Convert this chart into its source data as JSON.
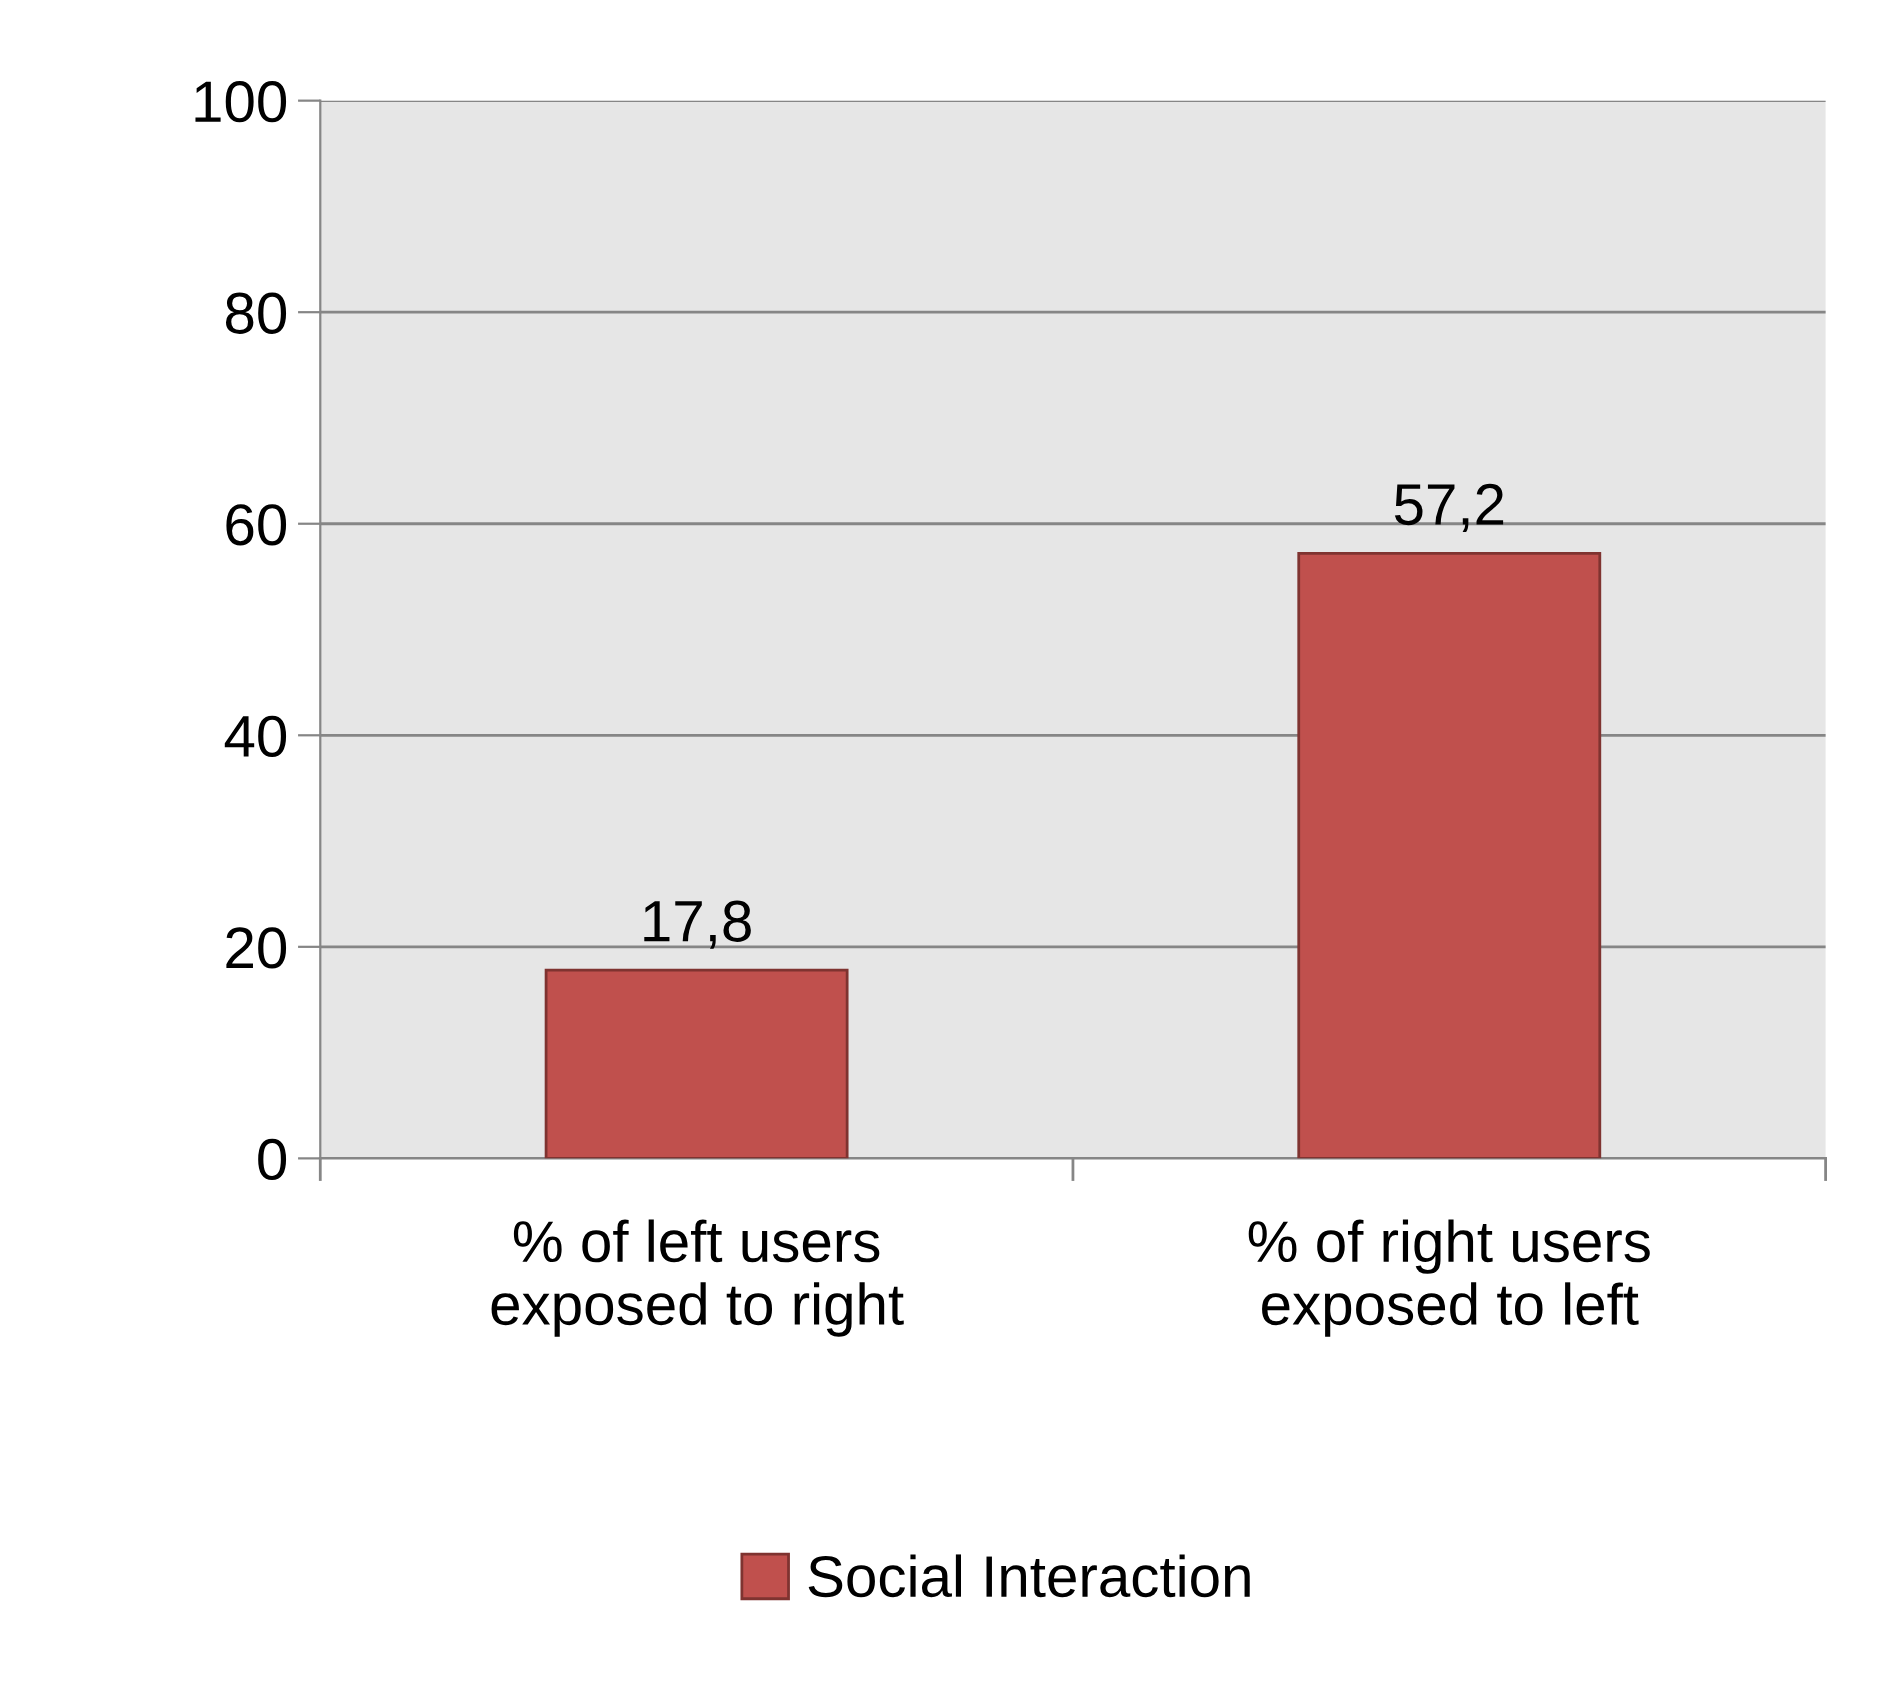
{
  "chart_data": {
    "type": "bar",
    "categories": [
      "% of left users\nexposed to right",
      "% of right users\nexposed to left"
    ],
    "series": [
      {
        "name": "Social Interaction",
        "color": "#c0504d",
        "values": [
          17.8,
          57.2
        ],
        "value_labels": [
          "17,8",
          "57,2"
        ]
      }
    ],
    "ylim": [
      0,
      100
    ],
    "yticks": [
      0,
      20,
      40,
      60,
      80,
      100
    ],
    "grid": "y",
    "legend": "bottom"
  }
}
